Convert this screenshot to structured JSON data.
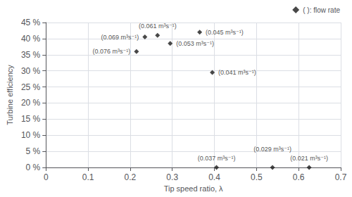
{
  "chart_data": {
    "type": "scatter",
    "xlabel": "Tip speed ratio, λ",
    "ylabel": "Turbine efficiency",
    "series": [
      {
        "name": "( ): flow rate",
        "color": "#1a1a1a",
        "marker": "diamond",
        "x": [
          0.215,
          0.235,
          0.265,
          0.295,
          0.365,
          0.395,
          0.405,
          0.538,
          0.625
        ],
        "values": [
          0.36,
          0.405,
          0.41,
          0.385,
          0.42,
          0.295,
          0.0,
          0.0,
          0.0
        ]
      }
    ],
    "annotations": [
      "(0.076 m³s⁻¹)",
      "(0.069 m³s⁻¹)",
      "(0.061 m³s⁻¹)",
      "(0.053 m³s⁻¹)",
      "(0.045 m³s⁻¹)",
      "(0.041 m³s⁻¹)",
      "(0.037 m³s⁻¹)",
      "(0.029 m³s⁻¹)",
      "(0.021 m³s⁻¹)"
    ],
    "xlim": [
      0,
      0.7
    ],
    "ylim": [
      0,
      0.45
    ],
    "xticks": [
      0,
      0.1,
      0.2,
      0.3,
      0.4,
      0.5,
      0.6,
      0.7
    ],
    "yticks": [
      {
        "value": 0,
        "label": "0 %"
      },
      {
        "value": 0.05,
        "label": "5 %"
      },
      {
        "value": 0.1,
        "label": "10 %"
      },
      {
        "value": 0.15,
        "label": "15 %"
      },
      {
        "value": 0.2,
        "label": "20 %"
      },
      {
        "value": 0.25,
        "label": "25 %"
      },
      {
        "value": 0.3,
        "label": "30 %"
      },
      {
        "value": 0.35,
        "label": "35 %"
      },
      {
        "value": 0.4,
        "label": "40 %"
      },
      {
        "value": 0.45,
        "label": "45 %"
      }
    ],
    "grid": true,
    "legend": "upper right"
  }
}
